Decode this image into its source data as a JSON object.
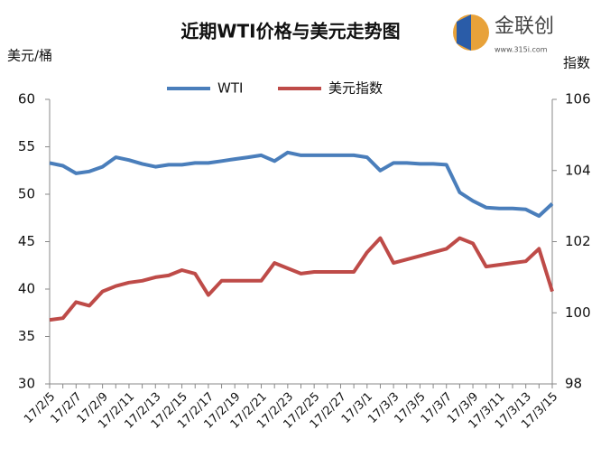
{
  "chart_data": {
    "type": "line",
    "title": "近期WTI价格与美元走势图",
    "y_label": "美元/桶",
    "y2_label": "指数",
    "logo": {
      "name": "金联创",
      "url": "www.315i.com"
    },
    "categories": [
      "17/2/5",
      null,
      "17/2/7",
      null,
      "17/2/9",
      null,
      "17/2/11",
      null,
      "17/2/13",
      null,
      "17/2/15",
      null,
      "17/2/17",
      null,
      "17/2/19",
      null,
      "17/2/21",
      null,
      "17/2/23",
      null,
      "17/2/25",
      null,
      "17/2/27",
      null,
      "17/3/1",
      null,
      "17/3/3",
      null,
      "17/3/5",
      null,
      "17/3/7",
      null,
      "17/3/9",
      null,
      "17/3/11",
      null,
      "17/3/13",
      null,
      "17/3/15"
    ],
    "series": [
      {
        "name": "WTI",
        "color": "#4a7ebb",
        "axis": "y",
        "values": [
          53.3,
          53.0,
          52.2,
          52.4,
          52.9,
          53.9,
          53.6,
          53.2,
          52.9,
          53.1,
          53.1,
          53.3,
          53.3,
          53.5,
          53.7,
          53.9,
          54.1,
          53.5,
          54.4,
          54.1,
          54.1,
          54.1,
          54.1,
          54.1,
          53.9,
          52.5,
          53.3,
          53.3,
          53.2,
          53.2,
          53.1,
          50.2,
          49.3,
          48.6,
          48.5,
          48.5,
          48.4,
          47.7,
          49.0
        ]
      },
      {
        "name": "美元指数",
        "color": "#be4b48",
        "axis": "y2",
        "values": [
          99.8,
          99.85,
          100.3,
          100.2,
          100.6,
          100.75,
          100.85,
          100.9,
          101.0,
          101.05,
          101.2,
          101.1,
          100.5,
          100.9,
          100.9,
          100.9,
          100.9,
          101.4,
          101.25,
          101.1,
          101.15,
          101.15,
          101.15,
          101.15,
          101.7,
          102.1,
          101.4,
          101.5,
          101.6,
          101.7,
          101.8,
          102.1,
          101.95,
          101.3,
          101.35,
          101.4,
          101.45,
          101.8,
          100.6
        ]
      }
    ],
    "ylim": [
      30,
      60
    ],
    "yticks": [
      60,
      55,
      50,
      45,
      40,
      35,
      30
    ],
    "y2lim": [
      98,
      106
    ],
    "y2ticks": [
      106,
      104,
      102,
      100,
      98
    ],
    "legend": "top",
    "grid": false
  }
}
